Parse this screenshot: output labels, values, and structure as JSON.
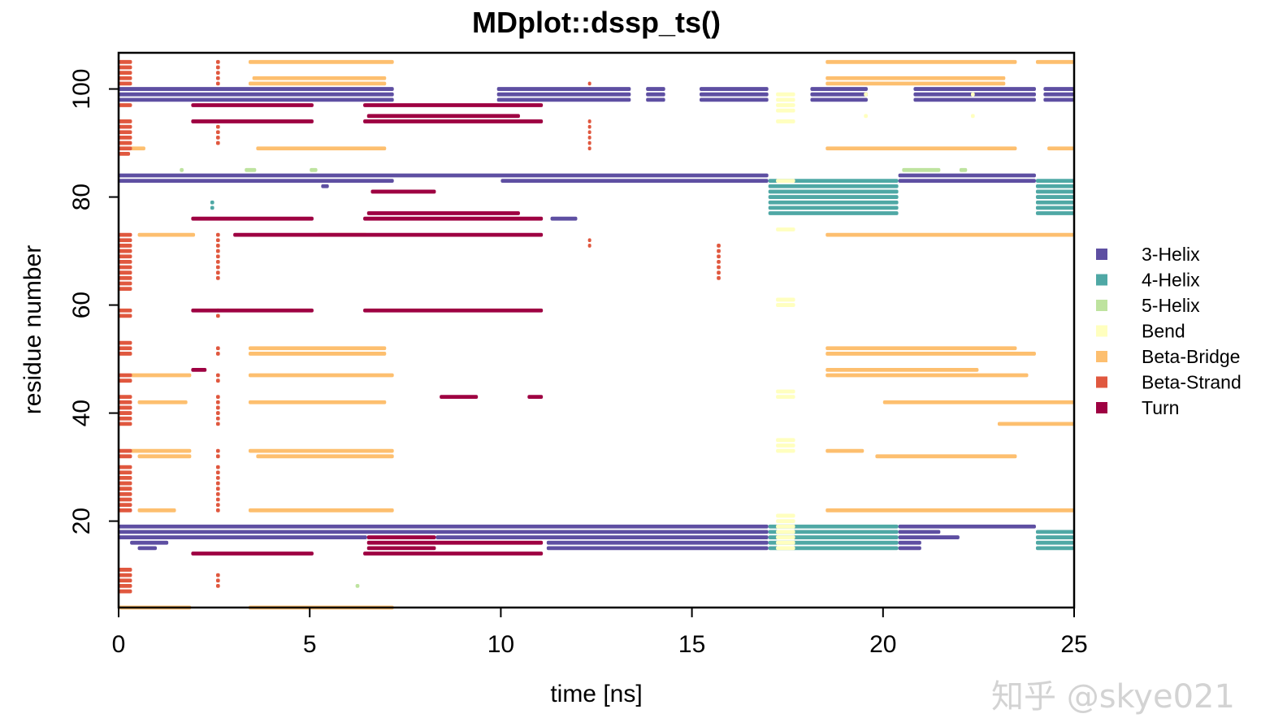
{
  "chart_data": {
    "type": "scatter",
    "title": "MDplot::dssp_ts()",
    "xlabel": "time [ns]",
    "ylabel": "residue number",
    "xlim": [
      0,
      25
    ],
    "ylim": [
      4,
      106.7
    ],
    "xticks": [
      0,
      5,
      10,
      15,
      20,
      25
    ],
    "yticks": [
      20,
      40,
      60,
      80,
      100
    ],
    "grid": false,
    "legend_position": "right",
    "legend": [
      {
        "name": "3-Helix",
        "color": "#5E4FA2"
      },
      {
        "name": "4-Helix",
        "color": "#4FA8A5"
      },
      {
        "name": "5-Helix",
        "color": "#BEE39F"
      },
      {
        "name": "Bend",
        "color": "#FFFFBF"
      },
      {
        "name": "Beta-Bridge",
        "color": "#FDBF6F"
      },
      {
        "name": "Beta-Strand",
        "color": "#E0583F"
      },
      {
        "name": "Turn",
        "color": "#9E0142"
      }
    ],
    "segments_note_format": "[residue, time_start_ns, time_end_ns]",
    "segments": {
      "3-Helix": [
        [
          100,
          0,
          7.2
        ],
        [
          99,
          0,
          7.2
        ],
        [
          98,
          0,
          7.2
        ],
        [
          100,
          9.9,
          13.4
        ],
        [
          99,
          9.9,
          13.4
        ],
        [
          98,
          9.9,
          13.4
        ],
        [
          100,
          13.8,
          14.3
        ],
        [
          99,
          13.8,
          14.3
        ],
        [
          98,
          13.8,
          14.3
        ],
        [
          100,
          15.2,
          17
        ],
        [
          99,
          15.2,
          17
        ],
        [
          98,
          15.2,
          17
        ],
        [
          100,
          18.1,
          19.6
        ],
        [
          99,
          18.1,
          19.6
        ],
        [
          98,
          18.1,
          19.6
        ],
        [
          100,
          20.8,
          24
        ],
        [
          99,
          20.8,
          24
        ],
        [
          98,
          20.8,
          24
        ],
        [
          100,
          24.2,
          25
        ],
        [
          99,
          24.2,
          25
        ],
        [
          98,
          24.2,
          25
        ],
        [
          84,
          0,
          17
        ],
        [
          83,
          0,
          7.2
        ],
        [
          83,
          10,
          17
        ],
        [
          84,
          20.4,
          24
        ],
        [
          83,
          20.4,
          24
        ],
        [
          82,
          5.3,
          5.5
        ],
        [
          76,
          11.3,
          12
        ],
        [
          19,
          0,
          17
        ],
        [
          18,
          0,
          17
        ],
        [
          17,
          0,
          6.5
        ],
        [
          17,
          8.3,
          17
        ],
        [
          16,
          0.3,
          1.3
        ],
        [
          16,
          11.2,
          17
        ],
        [
          15,
          0.5,
          1
        ],
        [
          15,
          11.2,
          17
        ],
        [
          19,
          20.4,
          24
        ],
        [
          18,
          20.4,
          21.5
        ],
        [
          17,
          20.4,
          22
        ],
        [
          16,
          20.4,
          21
        ],
        [
          15,
          20.4,
          21
        ]
      ],
      "4-Helix": [
        [
          83,
          17,
          20.4
        ],
        [
          82,
          17,
          20.4
        ],
        [
          81,
          17,
          20.4
        ],
        [
          80,
          17,
          20.4
        ],
        [
          79,
          17,
          20.4
        ],
        [
          78,
          17,
          20.4
        ],
        [
          77,
          17,
          20.4
        ],
        [
          83,
          24,
          25
        ],
        [
          82,
          24,
          25
        ],
        [
          81,
          24,
          25
        ],
        [
          80,
          24,
          25
        ],
        [
          79,
          24,
          25
        ],
        [
          78,
          24,
          25
        ],
        [
          77,
          24,
          25
        ],
        [
          79,
          2.4,
          2.5
        ],
        [
          78,
          2.4,
          2.5
        ],
        [
          19,
          17,
          20.4
        ],
        [
          18,
          17,
          20.4
        ],
        [
          17,
          17,
          20.4
        ],
        [
          16,
          17,
          20.4
        ],
        [
          15,
          17,
          20.4
        ],
        [
          18,
          24,
          25
        ],
        [
          17,
          24,
          25
        ],
        [
          16,
          24,
          25
        ],
        [
          15,
          24,
          25
        ]
      ],
      "5-Helix": [
        [
          85,
          1.6,
          1.7
        ],
        [
          85,
          3.3,
          3.6
        ],
        [
          85,
          5,
          5.2
        ],
        [
          85,
          20.5,
          21.5
        ],
        [
          85,
          22,
          22.2
        ],
        [
          8,
          6.2,
          6.3
        ]
      ],
      "Bend": [
        [
          99,
          17.2,
          17.7
        ],
        [
          98,
          17.2,
          17.7
        ],
        [
          97,
          17.2,
          17.7
        ],
        [
          96,
          17.2,
          17.7
        ],
        [
          94,
          17.2,
          17.7
        ],
        [
          83,
          17.2,
          17.7
        ],
        [
          74,
          17.2,
          17.7
        ],
        [
          61,
          17.2,
          17.7
        ],
        [
          60,
          17.2,
          17.7
        ],
        [
          44,
          17.2,
          17.7
        ],
        [
          43,
          17.2,
          17.7
        ],
        [
          35,
          17.2,
          17.7
        ],
        [
          34,
          17.2,
          17.7
        ],
        [
          33,
          17.2,
          17.7
        ],
        [
          21,
          17.2,
          17.7
        ],
        [
          20,
          17.2,
          17.7
        ],
        [
          19,
          17.2,
          17.7
        ],
        [
          18,
          17.2,
          17.7
        ],
        [
          17,
          17.2,
          17.7
        ],
        [
          16,
          17.2,
          17.7
        ],
        [
          15,
          17.2,
          17.7
        ],
        [
          99,
          19.5,
          19.6
        ],
        [
          95,
          19.5,
          19.6
        ],
        [
          99,
          22.3,
          22.4
        ],
        [
          95,
          22.3,
          22.4
        ]
      ],
      "Beta-Bridge": [
        [
          105,
          3.4,
          7.2
        ],
        [
          105,
          18.5,
          23.5
        ],
        [
          105,
          24,
          25
        ],
        [
          102,
          18.5,
          23.2
        ],
        [
          101,
          3.4,
          7
        ],
        [
          101,
          18.5,
          23.2
        ],
        [
          102,
          3.5,
          7
        ],
        [
          89,
          0.3,
          0.7
        ],
        [
          89,
          3.6,
          7
        ],
        [
          89,
          18.5,
          23.5
        ],
        [
          89,
          24.3,
          25
        ],
        [
          73,
          0.5,
          2
        ],
        [
          73,
          5.2,
          6.5
        ],
        [
          73,
          18.5,
          25
        ],
        [
          52,
          3.4,
          7
        ],
        [
          51,
          3.4,
          7
        ],
        [
          52,
          18.5,
          23.5
        ],
        [
          51,
          18.5,
          24
        ],
        [
          48,
          18.5,
          22.5
        ],
        [
          47,
          0.3,
          1.9
        ],
        [
          47,
          3.4,
          7.2
        ],
        [
          47,
          18.5,
          23.8
        ],
        [
          42,
          0.5,
          1.8
        ],
        [
          42,
          3.4,
          7
        ],
        [
          42,
          20,
          25
        ],
        [
          38,
          23,
          25
        ],
        [
          33,
          0.3,
          1.9
        ],
        [
          33,
          3.4,
          7.2
        ],
        [
          33,
          18.5,
          19.5
        ],
        [
          32,
          0.5,
          1.9
        ],
        [
          32,
          3.6,
          7.2
        ],
        [
          32,
          19.8,
          23.5
        ],
        [
          22,
          0.5,
          1.5
        ],
        [
          22,
          3.4,
          7.2
        ],
        [
          22,
          18.5,
          25
        ],
        [
          4,
          0,
          1.9
        ],
        [
          4,
          3.4,
          7.2
        ]
      ],
      "Beta-Strand": [
        [
          105,
          0,
          0.35
        ],
        [
          104,
          0,
          0.35
        ],
        [
          103,
          0,
          0.35
        ],
        [
          102,
          0,
          0.35
        ],
        [
          101,
          0,
          0.35
        ],
        [
          97,
          0,
          0.35
        ],
        [
          94,
          0,
          0.35
        ],
        [
          93,
          0,
          0.35
        ],
        [
          92,
          0,
          0.35
        ],
        [
          91,
          0,
          0.35
        ],
        [
          90,
          0,
          0.35
        ],
        [
          89,
          0,
          0.35
        ],
        [
          88,
          0,
          0.3
        ],
        [
          73,
          0,
          0.35
        ],
        [
          72,
          0,
          0.35
        ],
        [
          71,
          0,
          0.35
        ],
        [
          70,
          0,
          0.35
        ],
        [
          69,
          0,
          0.35
        ],
        [
          68,
          0,
          0.35
        ],
        [
          67,
          0,
          0.35
        ],
        [
          66,
          0,
          0.35
        ],
        [
          65,
          0,
          0.35
        ],
        [
          64,
          0,
          0.35
        ],
        [
          63,
          0,
          0.35
        ],
        [
          59,
          0,
          0.35
        ],
        [
          58,
          0,
          0.35
        ],
        [
          53,
          0,
          0.35
        ],
        [
          52,
          0,
          0.35
        ],
        [
          51,
          0,
          0.35
        ],
        [
          47,
          0,
          0.35
        ],
        [
          46,
          0,
          0.35
        ],
        [
          43,
          0,
          0.35
        ],
        [
          42,
          0,
          0.35
        ],
        [
          41,
          0,
          0.35
        ],
        [
          40,
          0,
          0.35
        ],
        [
          39,
          0,
          0.35
        ],
        [
          38,
          0,
          0.35
        ],
        [
          33,
          0,
          0.35
        ],
        [
          32,
          0,
          0.35
        ],
        [
          30,
          0,
          0.35
        ],
        [
          29,
          0,
          0.35
        ],
        [
          28,
          0,
          0.35
        ],
        [
          27,
          0,
          0.35
        ],
        [
          26,
          0,
          0.35
        ],
        [
          25,
          0,
          0.35
        ],
        [
          24,
          0,
          0.35
        ],
        [
          23,
          0,
          0.35
        ],
        [
          22,
          0,
          0.35
        ],
        [
          11,
          0,
          0.35
        ],
        [
          10,
          0,
          0.35
        ],
        [
          9,
          0,
          0.35
        ],
        [
          8,
          0,
          0.35
        ],
        [
          7,
          0,
          0.35
        ],
        [
          105,
          2.55,
          2.65
        ],
        [
          104,
          2.55,
          2.65
        ],
        [
          103,
          2.55,
          2.65
        ],
        [
          102,
          2.55,
          2.65
        ],
        [
          101,
          2.55,
          2.65
        ],
        [
          94,
          2.55,
          2.65
        ],
        [
          93,
          2.55,
          2.65
        ],
        [
          92,
          2.55,
          2.65
        ],
        [
          91,
          2.55,
          2.65
        ],
        [
          90,
          2.55,
          2.65
        ],
        [
          73,
          2.55,
          2.65
        ],
        [
          72,
          2.55,
          2.65
        ],
        [
          71,
          2.55,
          2.65
        ],
        [
          70,
          2.55,
          2.65
        ],
        [
          69,
          2.55,
          2.65
        ],
        [
          68,
          2.55,
          2.65
        ],
        [
          67,
          2.55,
          2.65
        ],
        [
          66,
          2.55,
          2.65
        ],
        [
          65,
          2.55,
          2.65
        ],
        [
          59,
          2.55,
          2.65
        ],
        [
          58,
          2.55,
          2.65
        ],
        [
          52,
          2.55,
          2.65
        ],
        [
          51,
          2.55,
          2.65
        ],
        [
          47,
          2.55,
          2.65
        ],
        [
          46,
          2.55,
          2.65
        ],
        [
          43,
          2.55,
          2.65
        ],
        [
          42,
          2.55,
          2.65
        ],
        [
          41,
          2.55,
          2.65
        ],
        [
          40,
          2.55,
          2.65
        ],
        [
          39,
          2.55,
          2.65
        ],
        [
          38,
          2.55,
          2.65
        ],
        [
          33,
          2.55,
          2.65
        ],
        [
          32,
          2.55,
          2.65
        ],
        [
          30,
          2.55,
          2.65
        ],
        [
          29,
          2.55,
          2.65
        ],
        [
          28,
          2.55,
          2.65
        ],
        [
          27,
          2.55,
          2.65
        ],
        [
          26,
          2.55,
          2.65
        ],
        [
          25,
          2.55,
          2.65
        ],
        [
          24,
          2.55,
          2.65
        ],
        [
          23,
          2.55,
          2.65
        ],
        [
          22,
          2.55,
          2.65
        ],
        [
          10,
          2.55,
          2.65
        ],
        [
          9,
          2.55,
          2.65
        ],
        [
          8,
          2.55,
          2.65
        ],
        [
          101,
          12.28,
          12.36
        ],
        [
          100,
          12.28,
          12.36
        ],
        [
          94,
          12.28,
          12.36
        ],
        [
          93,
          12.28,
          12.36
        ],
        [
          92,
          12.28,
          12.36
        ],
        [
          91,
          12.28,
          12.36
        ],
        [
          90,
          12.28,
          12.36
        ],
        [
          89,
          12.28,
          12.36
        ],
        [
          72,
          12.28,
          12.36
        ],
        [
          71,
          12.28,
          12.36
        ],
        [
          71,
          15.65,
          15.75
        ],
        [
          70,
          15.65,
          15.75
        ],
        [
          69,
          15.65,
          15.75
        ],
        [
          68,
          15.65,
          15.75
        ],
        [
          67,
          15.65,
          15.75
        ],
        [
          66,
          15.65,
          15.75
        ],
        [
          65,
          15.65,
          15.75
        ]
      ],
      "Turn": [
        [
          97,
          1.9,
          5.1
        ],
        [
          97,
          6.4,
          11.1
        ],
        [
          94,
          1.9,
          5.1
        ],
        [
          94,
          6.4,
          11.1
        ],
        [
          95,
          6.5,
          10.5
        ],
        [
          81,
          6.6,
          8.3
        ],
        [
          77,
          6.5,
          10.5
        ],
        [
          76,
          1.9,
          5.1
        ],
        [
          76,
          6.4,
          11.1
        ],
        [
          73,
          3.0,
          11.1
        ],
        [
          59,
          1.9,
          5.1
        ],
        [
          59,
          6.4,
          11.1
        ],
        [
          43,
          8.4,
          9.4
        ],
        [
          43,
          10.7,
          11.1
        ],
        [
          48,
          1.9,
          2.3
        ],
        [
          17,
          6.5,
          8.3
        ],
        [
          16,
          6.5,
          11.1
        ],
        [
          15,
          6.5,
          8.3
        ],
        [
          14,
          1.9,
          5.1
        ],
        [
          14,
          6.4,
          11.1
        ]
      ]
    }
  },
  "watermark": "知乎 @skye021"
}
